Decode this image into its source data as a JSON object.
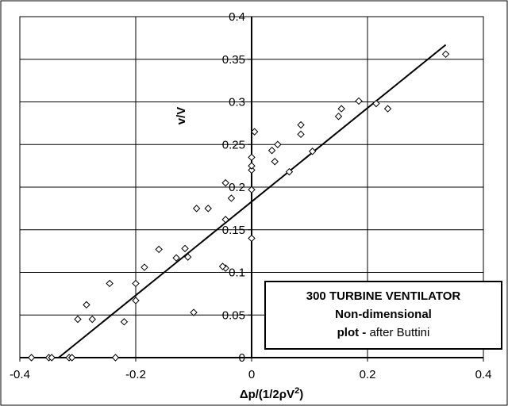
{
  "chart_data": {
    "type": "scatter",
    "title": "",
    "xlabel_main": "Δp/(1/2ρV",
    "xlabel_sup": "2",
    "xlabel_tail": ")",
    "ylabel": "v/V",
    "xlim": [
      -0.4,
      0.4
    ],
    "ylim": [
      0,
      0.4
    ],
    "x_ticks": [
      "-0.4",
      "-0.2",
      "0",
      "0.2",
      "0.4"
    ],
    "y_ticks": [
      "0",
      "0.05",
      "0.1",
      "0.15",
      "0.2",
      "0.25",
      "0.3",
      "0.35",
      "0.4"
    ],
    "grid": true,
    "legend_placement": "bottom-right",
    "annotation": {
      "line1": "300 TURBINE VENTILATOR",
      "line2": "Non-dimensional",
      "line3_bold": "plot - ",
      "line3_rest": "after Buttini"
    },
    "series": [
      {
        "marker": "diamond",
        "points": [
          [
            -0.38,
            0.0
          ],
          [
            -0.35,
            0.0
          ],
          [
            -0.345,
            0.0
          ],
          [
            -0.315,
            0.0
          ],
          [
            -0.31,
            0.0
          ],
          [
            -0.235,
            0.0
          ],
          [
            -0.3,
            0.045
          ],
          [
            -0.275,
            0.045
          ],
          [
            -0.285,
            0.062
          ],
          [
            -0.22,
            0.042
          ],
          [
            -0.245,
            0.087
          ],
          [
            -0.2,
            0.067
          ],
          [
            -0.2,
            0.087
          ],
          [
            -0.185,
            0.106
          ],
          [
            -0.16,
            0.127
          ],
          [
            -0.13,
            0.117
          ],
          [
            -0.115,
            0.128
          ],
          [
            -0.11,
            0.118
          ],
          [
            -0.1,
            0.053
          ],
          [
            -0.095,
            0.175
          ],
          [
            -0.075,
            0.175
          ],
          [
            -0.045,
            0.105
          ],
          [
            -0.05,
            0.107
          ],
          [
            -0.045,
            0.162
          ],
          [
            -0.045,
            0.205
          ],
          [
            -0.035,
            0.187
          ],
          [
            0.0,
            0.14
          ],
          [
            0.0,
            0.197
          ],
          [
            0.0,
            0.22
          ],
          [
            0.0,
            0.225
          ],
          [
            0.0,
            0.235
          ],
          [
            0.005,
            0.265
          ],
          [
            0.035,
            0.243
          ],
          [
            0.04,
            0.23
          ],
          [
            0.045,
            0.25
          ],
          [
            0.065,
            0.218
          ],
          [
            0.085,
            0.262
          ],
          [
            0.085,
            0.273
          ],
          [
            0.105,
            0.242
          ],
          [
            0.15,
            0.283
          ],
          [
            0.155,
            0.292
          ],
          [
            0.185,
            0.301
          ],
          [
            0.215,
            0.298
          ],
          [
            0.235,
            0.292
          ],
          [
            0.335,
            0.356
          ]
        ]
      },
      {
        "type": "line",
        "points": [
          [
            -0.333,
            0.0
          ],
          [
            0.335,
            0.367
          ]
        ]
      }
    ]
  }
}
